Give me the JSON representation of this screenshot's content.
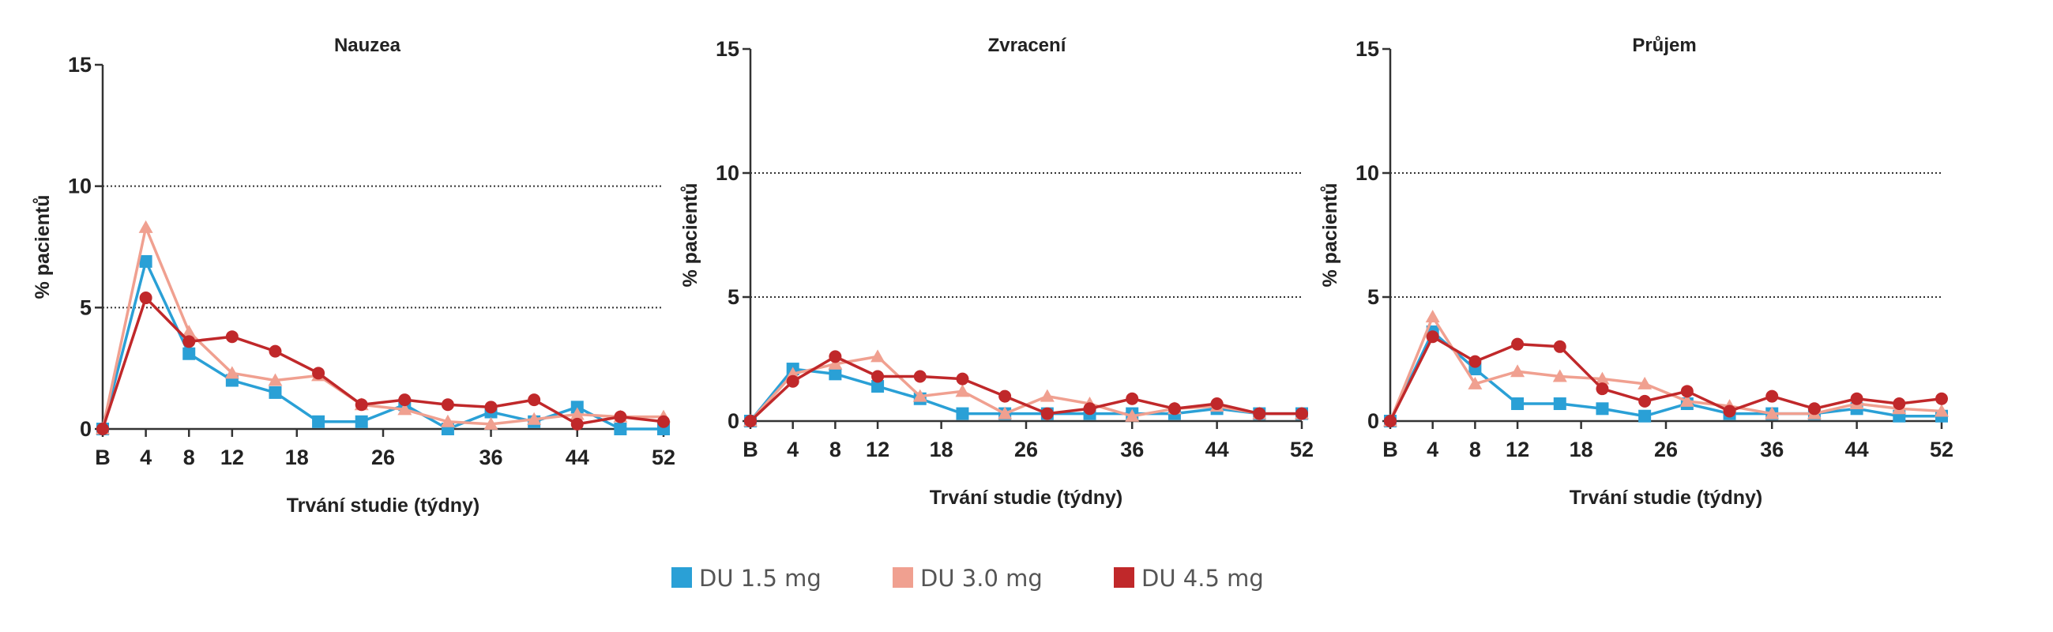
{
  "legend": [
    {
      "name": "DU 1.5 mg",
      "color": "#2aa0d6",
      "marker": "square"
    },
    {
      "name": "DU 3.0 mg",
      "color": "#f0a090",
      "marker": "triangle"
    },
    {
      "name": "DU 4.5 mg",
      "color": "#c0282a",
      "marker": "circle"
    }
  ],
  "chart_data": [
    {
      "type": "line",
      "title": "Nauzea",
      "xlabel": "Trvání studie (týdny)",
      "ylabel": "% pacientů",
      "ylim": [
        0,
        15
      ],
      "yticks": [
        0,
        5,
        10,
        15
      ],
      "xticks": [
        {
          "value": 0,
          "label": "B"
        },
        {
          "value": 4,
          "label": "4"
        },
        {
          "value": 8,
          "label": "8"
        },
        {
          "value": 12,
          "label": "12"
        },
        {
          "value": 18,
          "label": "18"
        },
        {
          "value": 26,
          "label": "26"
        },
        {
          "value": 36,
          "label": "36"
        },
        {
          "value": 44,
          "label": "44"
        },
        {
          "value": 52,
          "label": "52"
        }
      ],
      "gridlines_y": [
        5,
        10
      ],
      "series": [
        {
          "name": "DU 1.5 mg",
          "x": [
            0,
            4,
            8,
            12,
            16,
            20,
            24,
            28,
            32,
            36,
            40,
            44,
            48,
            52
          ],
          "values": [
            0,
            6.9,
            3.1,
            2.0,
            1.5,
            0.3,
            0.3,
            1.0,
            0.0,
            0.7,
            0.3,
            0.9,
            0.0,
            0.0
          ]
        },
        {
          "name": "DU 3.0 mg",
          "x": [
            0,
            4,
            8,
            12,
            16,
            20,
            24,
            28,
            32,
            36,
            40,
            44,
            48,
            52
          ],
          "values": [
            0,
            8.3,
            4.0,
            2.3,
            2.0,
            2.2,
            1.0,
            0.8,
            0.3,
            0.2,
            0.4,
            0.6,
            0.5,
            0.5
          ]
        },
        {
          "name": "DU 4.5 mg",
          "x": [
            0,
            4,
            8,
            12,
            16,
            20,
            24,
            28,
            32,
            36,
            40,
            44,
            48,
            52
          ],
          "values": [
            0,
            5.4,
            3.6,
            3.8,
            3.2,
            2.3,
            1.0,
            1.2,
            1.0,
            0.9,
            1.2,
            0.2,
            0.5,
            0.3
          ]
        }
      ]
    },
    {
      "type": "line",
      "title": "Zvracení",
      "xlabel": "Trvání studie (týdny)",
      "ylabel": "% pacientů",
      "ylim": [
        0,
        15
      ],
      "yticks": [
        0,
        5,
        10,
        15
      ],
      "xticks": [
        {
          "value": 0,
          "label": "B"
        },
        {
          "value": 4,
          "label": "4"
        },
        {
          "value": 8,
          "label": "8"
        },
        {
          "value": 12,
          "label": "12"
        },
        {
          "value": 18,
          "label": "18"
        },
        {
          "value": 26,
          "label": "26"
        },
        {
          "value": 36,
          "label": "36"
        },
        {
          "value": 44,
          "label": "44"
        },
        {
          "value": 52,
          "label": "52"
        }
      ],
      "gridlines_y": [
        5,
        10
      ],
      "series": [
        {
          "name": "DU 1.5 mg",
          "x": [
            0,
            4,
            8,
            12,
            16,
            20,
            24,
            28,
            32,
            36,
            40,
            44,
            48,
            52
          ],
          "values": [
            0,
            2.1,
            1.9,
            1.4,
            0.9,
            0.3,
            0.3,
            0.3,
            0.3,
            0.3,
            0.3,
            0.5,
            0.3,
            0.3
          ]
        },
        {
          "name": "DU 3.0 mg",
          "x": [
            0,
            4,
            8,
            12,
            16,
            20,
            24,
            28,
            32,
            36,
            40,
            44,
            48,
            52
          ],
          "values": [
            0,
            1.9,
            2.3,
            2.6,
            1.0,
            1.2,
            0.3,
            1.0,
            0.7,
            0.2,
            0.5,
            0.6,
            0.3,
            0.3
          ]
        },
        {
          "name": "DU 4.5 mg",
          "x": [
            0,
            4,
            8,
            12,
            16,
            20,
            24,
            28,
            32,
            36,
            40,
            44,
            48,
            52
          ],
          "values": [
            0,
            1.6,
            2.6,
            1.8,
            1.8,
            1.7,
            1.0,
            0.3,
            0.5,
            0.9,
            0.5,
            0.7,
            0.3,
            0.3
          ]
        }
      ]
    },
    {
      "type": "line",
      "title": "Průjem",
      "xlabel": "Trvání studie (týdny)",
      "ylabel": "% pacientů",
      "ylim": [
        0,
        15
      ],
      "yticks": [
        0,
        5,
        10,
        15
      ],
      "xticks": [
        {
          "value": 0,
          "label": "B"
        },
        {
          "value": 4,
          "label": "4"
        },
        {
          "value": 8,
          "label": "8"
        },
        {
          "value": 12,
          "label": "12"
        },
        {
          "value": 18,
          "label": "18"
        },
        {
          "value": 26,
          "label": "26"
        },
        {
          "value": 36,
          "label": "36"
        },
        {
          "value": 44,
          "label": "44"
        },
        {
          "value": 52,
          "label": "52"
        }
      ],
      "gridlines_y": [
        5,
        10
      ],
      "series": [
        {
          "name": "DU 1.5 mg",
          "x": [
            0,
            4,
            8,
            12,
            16,
            20,
            24,
            28,
            32,
            36,
            40,
            44,
            48,
            52
          ],
          "values": [
            0,
            3.6,
            2.1,
            0.7,
            0.7,
            0.5,
            0.2,
            0.7,
            0.3,
            0.3,
            0.3,
            0.5,
            0.2,
            0.2
          ]
        },
        {
          "name": "DU 3.0 mg",
          "x": [
            0,
            4,
            8,
            12,
            16,
            20,
            24,
            28,
            32,
            36,
            40,
            44,
            48,
            52
          ],
          "values": [
            0,
            4.2,
            1.5,
            2.0,
            1.8,
            1.7,
            1.5,
            0.8,
            0.6,
            0.3,
            0.3,
            0.7,
            0.5,
            0.4
          ]
        },
        {
          "name": "DU 4.5 mg",
          "x": [
            0,
            4,
            8,
            12,
            16,
            20,
            24,
            28,
            32,
            36,
            40,
            44,
            48,
            52
          ],
          "values": [
            0,
            3.4,
            2.4,
            3.1,
            3.0,
            1.3,
            0.8,
            1.2,
            0.4,
            1.0,
            0.5,
            0.9,
            0.7,
            0.9
          ]
        }
      ]
    }
  ]
}
